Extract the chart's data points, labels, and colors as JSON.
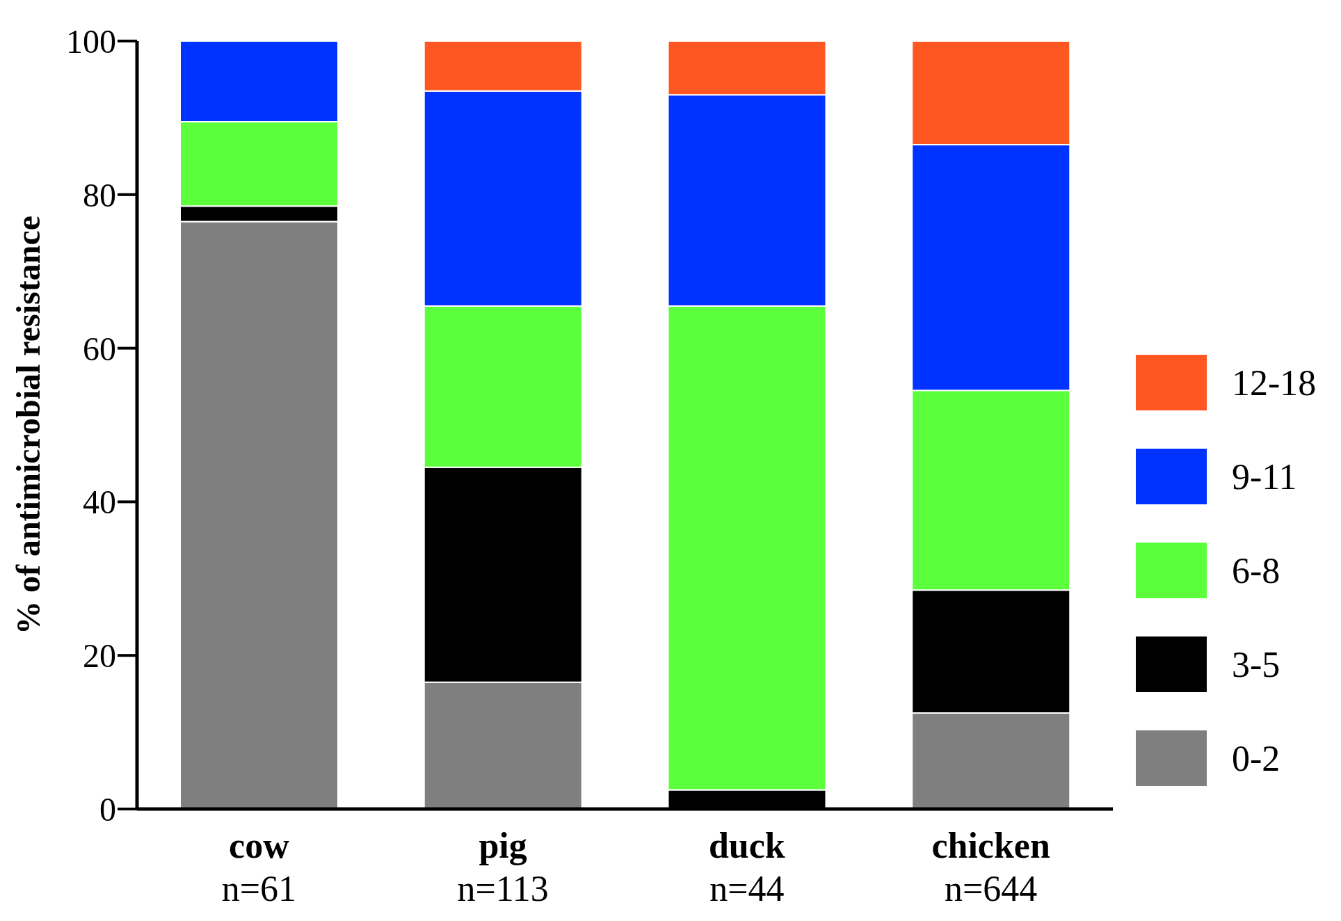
{
  "chart_data": {
    "type": "bar",
    "stacked": true,
    "ylabel": "% of antimicrobial resistance",
    "categories": [
      "cow\nn=61",
      "pig\nn=113",
      "duck\nn=44",
      "chicken\nn=644"
    ],
    "series": [
      {
        "name": "0-2",
        "color": "#7f7f7f",
        "values": [
          76.5,
          16.5,
          0,
          12.5
        ]
      },
      {
        "name": "3-5",
        "color": "#000000",
        "values": [
          2,
          28,
          2.5,
          16
        ]
      },
      {
        "name": "6-8",
        "color": "#5cff3c",
        "values": [
          11,
          21,
          63,
          26
        ]
      },
      {
        "name": "9-11",
        "color": "#0033ff",
        "values": [
          10.5,
          28,
          27.5,
          32
        ]
      },
      {
        "name": "12-18",
        "color": "#ff5722",
        "values": [
          0,
          6.5,
          7,
          13.5
        ]
      }
    ],
    "ylim": [
      0,
      100
    ],
    "yticks": [
      0,
      20,
      40,
      60,
      80,
      100
    ],
    "legend": "right"
  }
}
